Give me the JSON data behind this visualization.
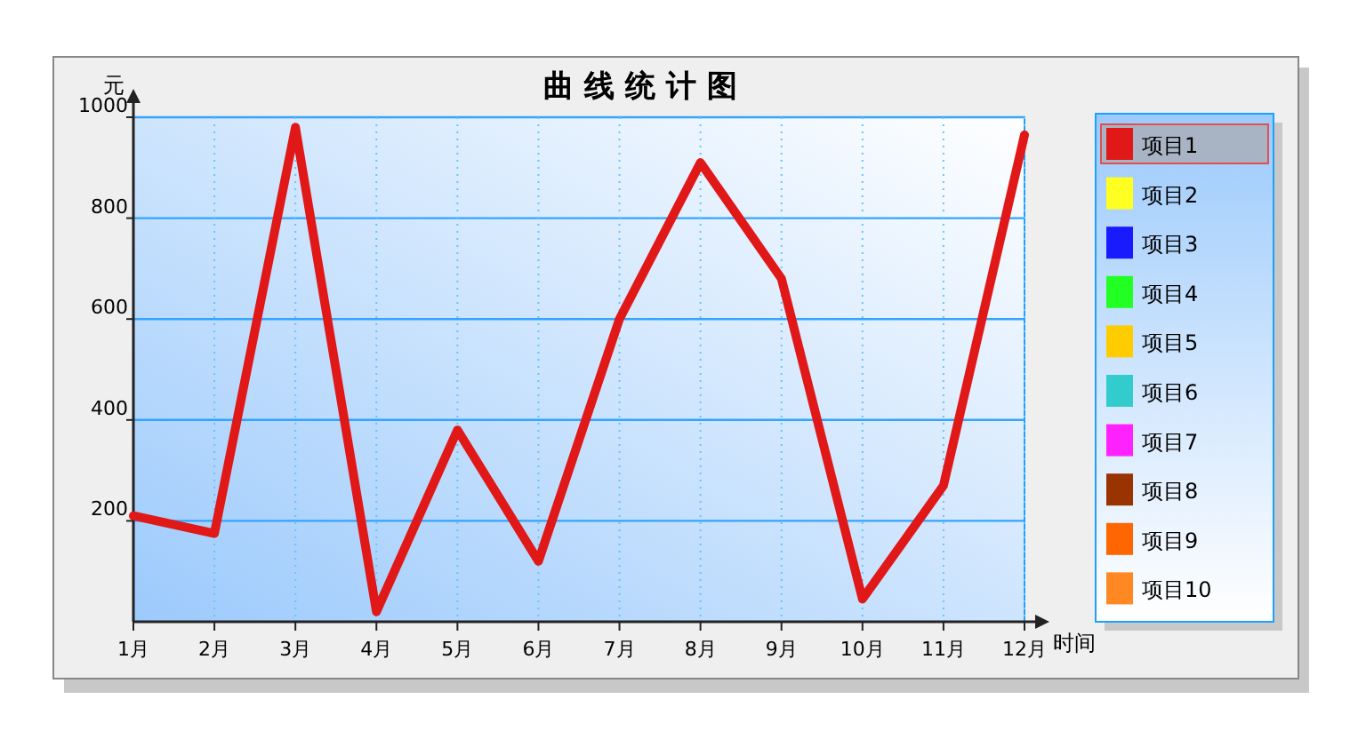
{
  "chart_data": {
    "type": "line",
    "title": "曲 线 统 计 图",
    "xlabel": "时间",
    "ylabel": "元",
    "categories": [
      "1月",
      "2月",
      "3月",
      "4月",
      "5月",
      "6月",
      "7月",
      "8月",
      "9月",
      "10月",
      "11月",
      "12月"
    ],
    "series": [
      {
        "name": "项目1",
        "color": "#e01818",
        "values": [
          210,
          175,
          980,
          20,
          380,
          120,
          600,
          910,
          680,
          45,
          270,
          965
        ]
      },
      {
        "name": "项目2",
        "color": "#ffff22",
        "values": [
          null,
          null,
          null,
          null,
          null,
          null,
          null,
          null,
          null,
          null,
          null,
          null
        ]
      },
      {
        "name": "项目3",
        "color": "#1a1aff",
        "values": [
          null,
          null,
          null,
          null,
          null,
          null,
          null,
          null,
          null,
          null,
          null,
          null
        ]
      },
      {
        "name": "项目4",
        "color": "#22ff22",
        "values": [
          null,
          null,
          null,
          null,
          null,
          null,
          null,
          null,
          null,
          null,
          null,
          null
        ]
      },
      {
        "name": "项目5",
        "color": "#ffcc00",
        "values": [
          null,
          null,
          null,
          null,
          null,
          null,
          null,
          null,
          null,
          null,
          null,
          null
        ]
      },
      {
        "name": "项目6",
        "color": "#33cccc",
        "values": [
          null,
          null,
          null,
          null,
          null,
          null,
          null,
          null,
          null,
          null,
          null,
          null
        ]
      },
      {
        "name": "项目7",
        "color": "#ff22ff",
        "values": [
          null,
          null,
          null,
          null,
          null,
          null,
          null,
          null,
          null,
          null,
          null,
          null
        ]
      },
      {
        "name": "项目8",
        "color": "#993300",
        "values": [
          null,
          null,
          null,
          null,
          null,
          null,
          null,
          null,
          null,
          null,
          null,
          null
        ]
      },
      {
        "name": "项目9",
        "color": "#ff6600",
        "values": [
          null,
          null,
          null,
          null,
          null,
          null,
          null,
          null,
          null,
          null,
          null,
          null
        ]
      },
      {
        "name": "项目10",
        "color": "#ff8822",
        "values": [
          null,
          null,
          null,
          null,
          null,
          null,
          null,
          null,
          null,
          null,
          null,
          null
        ]
      }
    ],
    "ylim": [
      0,
      1000
    ],
    "yticks": [
      200,
      400,
      600,
      800,
      1000
    ],
    "grid": true,
    "legend": "right",
    "marker": "none",
    "line_style": "solid"
  }
}
